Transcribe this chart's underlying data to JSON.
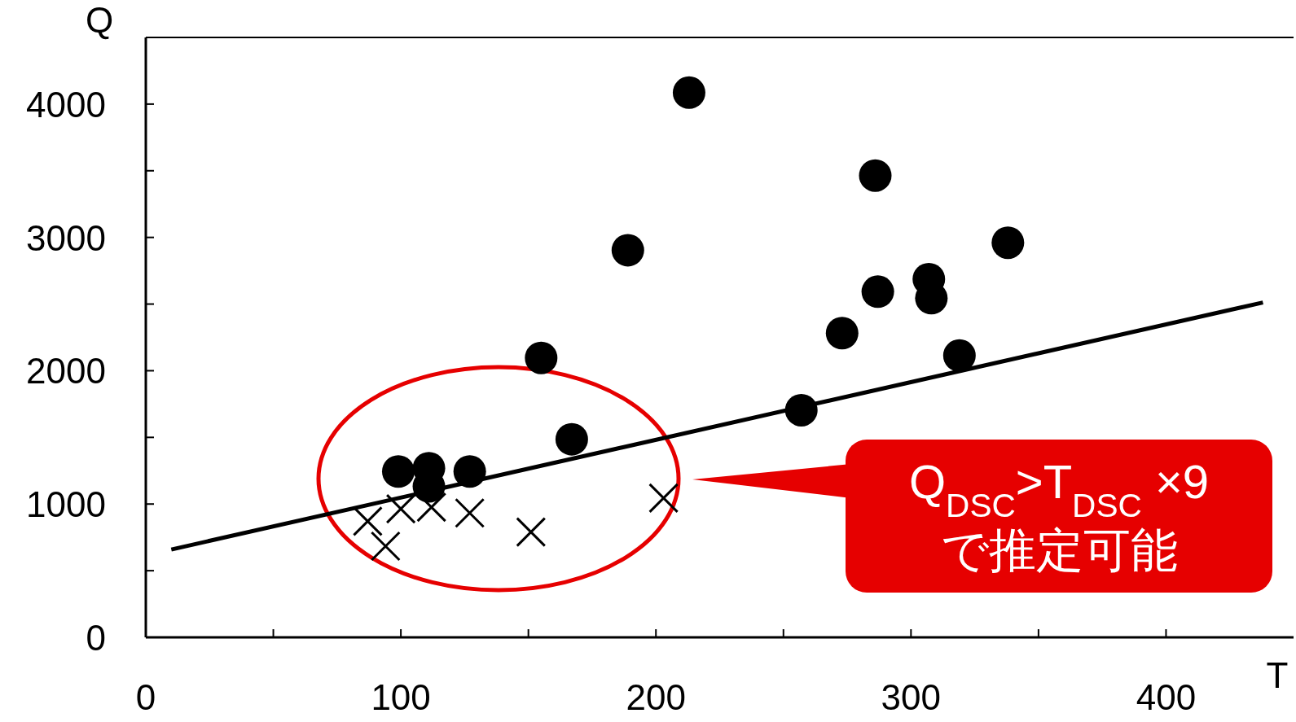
{
  "chart_data": {
    "type": "scatter",
    "xlabel": "T",
    "ylabel": "Q",
    "xlim": [
      0,
      450
    ],
    "ylim": [
      0,
      4500
    ],
    "xticks": [
      0,
      {
        "value": 50,
        "label": null
      },
      100,
      {
        "value": 150,
        "label": null
      },
      200,
      {
        "value": 250,
        "label": null
      },
      300,
      {
        "value": 350,
        "label": null
      },
      400
    ],
    "yticks": [
      0,
      {
        "value": 500,
        "label": null
      },
      1000,
      {
        "value": 1500,
        "label": null
      },
      2000,
      {
        "value": 2500,
        "label": null
      },
      3000,
      {
        "value": 3500,
        "label": null
      },
      4000
    ],
    "series": [
      {
        "marker": "circle",
        "color": "#000000",
        "x": [
          99,
          111,
          111,
          127,
          155,
          167,
          189,
          213,
          257,
          273,
          286,
          287,
          307,
          308,
          319,
          338
        ],
        "values": [
          1244,
          1269,
          1132,
          1244,
          2096,
          1486,
          2904,
          4086,
          1704,
          2282,
          3464,
          2593,
          2687,
          2544,
          2114,
          2960
        ]
      },
      {
        "marker": "cross",
        "color": "#000000",
        "x": [
          87,
          94,
          100,
          112,
          127,
          151,
          203
        ],
        "values": [
          871,
          684,
          964,
          976,
          933,
          790,
          1045
        ]
      },
      {
        "type": "line",
        "marker": "none",
        "color": "#000000",
        "x": [
          10,
          438
        ],
        "values": [
          659,
          2512
        ]
      }
    ],
    "annotations": [
      "Q$_{DSC}$>T$_{DSC}$ ×9",
      "で推定可能"
    ]
  }
}
